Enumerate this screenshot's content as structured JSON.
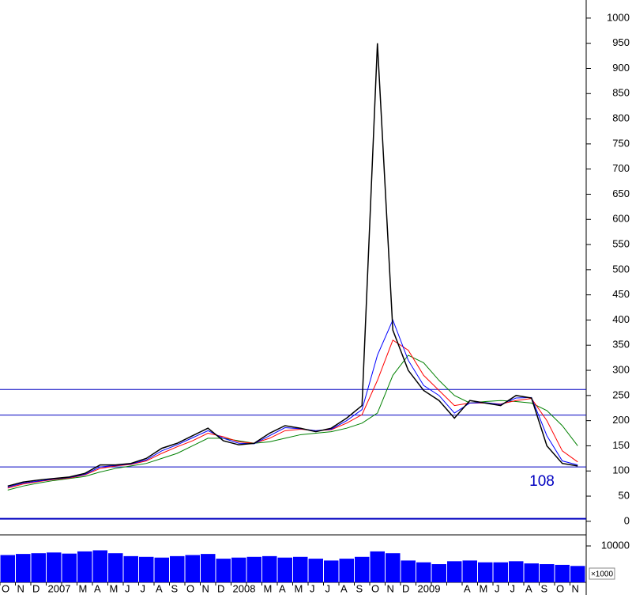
{
  "chart_data": {
    "type": "line",
    "categories": [
      "O",
      "N",
      "D",
      "2007",
      null,
      "M",
      "A",
      "M",
      "J",
      "J",
      "A",
      "S",
      "O",
      "N",
      "D",
      "2008",
      null,
      "M",
      "A",
      "M",
      "J",
      "J",
      "A",
      "S",
      "O",
      "N",
      "D",
      "2009",
      null,
      null,
      "A",
      "M",
      "J",
      "J",
      "A",
      "S",
      "O",
      "N"
    ],
    "series": [
      {
        "color": "#000000",
        "values": [
          70,
          78,
          82,
          85,
          88,
          95,
          112,
          112,
          115,
          125,
          145,
          155,
          170,
          185,
          160,
          152,
          155,
          175,
          190,
          185,
          178,
          185,
          205,
          230,
          950,
          380,
          300,
          260,
          240,
          205,
          240,
          235,
          230,
          250,
          245,
          150,
          115,
          110
        ]
      },
      {
        "color": "#0000ff",
        "values": [
          68,
          76,
          80,
          84,
          87,
          93,
          108,
          111,
          114,
          122,
          140,
          152,
          166,
          180,
          165,
          155,
          154,
          170,
          186,
          184,
          180,
          183,
          200,
          222,
          330,
          400,
          320,
          270,
          250,
          215,
          235,
          236,
          232,
          245,
          246,
          170,
          120,
          112
        ]
      },
      {
        "color": "#ff0000",
        "values": [
          66,
          74,
          79,
          83,
          86,
          92,
          105,
          110,
          113,
          120,
          135,
          148,
          160,
          175,
          168,
          158,
          155,
          165,
          180,
          183,
          180,
          182,
          195,
          212,
          280,
          360,
          340,
          290,
          260,
          230,
          235,
          235,
          233,
          240,
          244,
          200,
          140,
          118
        ]
      },
      {
        "color": "#008000",
        "values": [
          62,
          70,
          76,
          81,
          85,
          89,
          98,
          105,
          110,
          115,
          125,
          135,
          150,
          165,
          165,
          160,
          155,
          158,
          165,
          172,
          175,
          178,
          185,
          195,
          215,
          290,
          330,
          315,
          280,
          250,
          235,
          238,
          240,
          238,
          235,
          220,
          190,
          150
        ]
      }
    ],
    "levels": [
      262,
      211,
      108,
      5
    ],
    "level_color": "#0000c0",
    "annotation": "108",
    "ylim": [
      -27,
      1036
    ],
    "yticks": [
      0,
      50,
      100,
      150,
      200,
      250,
      300,
      350,
      400,
      450,
      500,
      550,
      600,
      650,
      700,
      750,
      800,
      850,
      900,
      950,
      1000
    ],
    "volume": {
      "color": "#0000ff",
      "ylim": [
        0,
        10000
      ],
      "yticks": [
        10000
      ],
      "unit": "×1000",
      "values": [
        7500,
        7800,
        8000,
        8200,
        7900,
        8500,
        8800,
        8000,
        7200,
        7000,
        6800,
        7200,
        7500,
        7800,
        6500,
        6800,
        7000,
        7200,
        6800,
        7000,
        6500,
        6000,
        6500,
        7000,
        8500,
        8000,
        6000,
        5500,
        5000,
        5800,
        6000,
        5500,
        5500,
        5800,
        5200,
        5000,
        4800,
        4500
      ]
    }
  }
}
